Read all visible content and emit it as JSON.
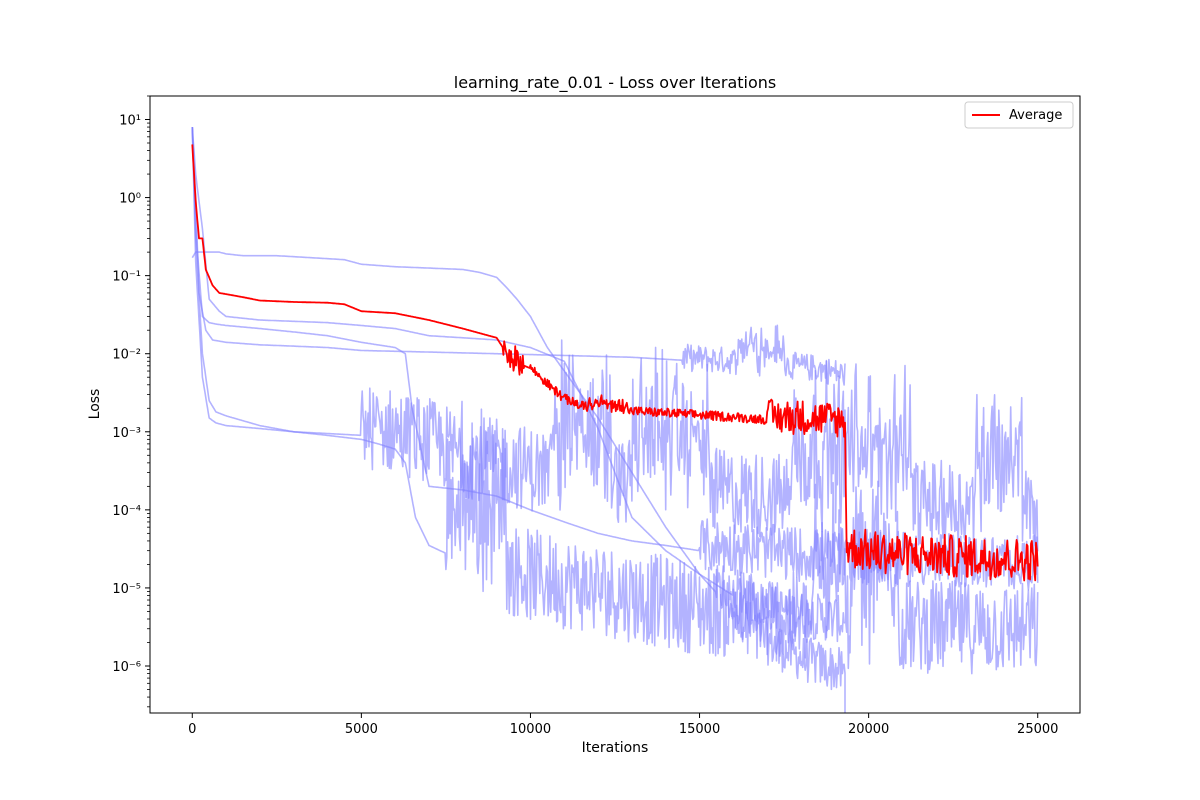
{
  "chart_data": {
    "type": "line",
    "title": "learning_rate_0.01 - Loss over Iterations",
    "xlabel": "Iterations",
    "ylabel": "Loss",
    "xlim": [
      -1250,
      26250
    ],
    "ylim": [
      2.5e-07,
      20
    ],
    "yscale": "log",
    "grid": false,
    "legend_position": "top-right",
    "x_ticks": [
      0,
      5000,
      10000,
      15000,
      20000,
      25000
    ],
    "x_tick_labels": [
      "0",
      "5000",
      "10000",
      "15000",
      "20000",
      "25000"
    ],
    "y_ticks": [
      1e-06,
      1e-05,
      0.0001,
      0.001,
      0.01,
      0.1,
      1,
      10
    ],
    "y_tick_labels": [
      "10⁻⁶",
      "10⁻⁵",
      "10⁻⁴",
      "10⁻³",
      "10⁻²",
      "10⁻¹",
      "10⁰",
      "10¹"
    ],
    "colors": {
      "average": "#ff0000",
      "runs": "#8080ff"
    },
    "run_opacity": 0.6,
    "series": [
      {
        "role": "run",
        "x": [
          0,
          100,
          300,
          500,
          800,
          1000,
          1500,
          2500,
          3500,
          4500,
          5000,
          6000,
          7000,
          8000,
          8500,
          9000,
          9300,
          9600,
          10000,
          10500,
          11000,
          12000,
          13000,
          14000,
          15000,
          16000,
          17000,
          18000,
          19000,
          19300
        ],
        "y": [
          0.17,
          0.2,
          0.2,
          0.2,
          0.2,
          0.19,
          0.18,
          0.18,
          0.17,
          0.16,
          0.14,
          0.13,
          0.125,
          0.12,
          0.11,
          0.095,
          0.07,
          0.05,
          0.03,
          0.012,
          0.006,
          0.0015,
          0.0003,
          6e-05,
          1.5e-05,
          5e-06,
          1.8e-06,
          1.1e-06,
          8e-07,
          7e-07
        ],
        "noise": [
          [
            15500,
            19300,
            0.6
          ]
        ],
        "end_drop": true
      },
      {
        "role": "run",
        "x": [
          0,
          100,
          300,
          500,
          800,
          1000,
          2000,
          3000,
          4000,
          5000,
          6000,
          7000,
          8000,
          9000,
          10000,
          11000,
          12000,
          13000,
          14000,
          15000,
          16000,
          17000,
          18000,
          19000,
          19300
        ],
        "y": [
          8,
          2,
          0.4,
          0.05,
          0.035,
          0.03,
          0.027,
          0.026,
          0.025,
          0.023,
          0.021,
          0.017,
          0.016,
          0.015,
          0.012,
          0.008,
          0.0011,
          8e-05,
          3e-05,
          1.5e-05,
          8e-06,
          5e-06,
          4e-06,
          3.5e-06,
          3.5e-06
        ],
        "noise": [
          [
            16000,
            19300,
            0.6
          ]
        ]
      },
      {
        "role": "run",
        "x": [
          0,
          100,
          200,
          400,
          600,
          1000,
          2000,
          3000,
          4000,
          5000,
          7000,
          9000,
          11000,
          13000,
          15000,
          17000,
          18500,
          19300
        ],
        "y": [
          8,
          1,
          0.06,
          0.02,
          0.015,
          0.014,
          0.013,
          0.0125,
          0.012,
          0.011,
          0.0105,
          0.01,
          0.0095,
          0.009,
          0.008,
          0.007,
          0.006,
          0.005
        ],
        "noise": [
          [
            14500,
            19300,
            0.35
          ]
        ]
      },
      {
        "role": "run",
        "x": [
          0,
          100,
          300,
          500,
          700,
          1000,
          2000,
          3000,
          4000,
          5000,
          5500,
          6000,
          6300,
          6600,
          7000,
          8000,
          9000,
          10000,
          11000,
          12000,
          13000,
          14000,
          15000,
          16000,
          17000,
          18000,
          19000,
          20000,
          21000,
          22000,
          23000,
          24000,
          25000
        ],
        "y": [
          8,
          0.3,
          0.01,
          0.0025,
          0.0018,
          0.0016,
          0.0012,
          0.001,
          0.0009,
          0.0008,
          0.0007,
          0.0006,
          0.0004,
          8e-05,
          3.5e-05,
          2.2e-05,
          1.5e-05,
          1.1e-05,
          9e-06,
          7.5e-06,
          6e-06,
          5e-06,
          4.2e-06,
          3.6e-06,
          3.2e-06,
          3e-06,
          2.8e-06,
          2.6e-06,
          2.5e-06,
          2.4e-06,
          2.4e-06,
          2.3e-06,
          2.3e-06
        ],
        "noise": [
          [
            7500,
            25000,
            1.2
          ]
        ]
      },
      {
        "role": "run",
        "x": [
          0,
          100,
          300,
          500,
          700,
          1000,
          2000,
          3000,
          4000,
          5000,
          6000,
          7000,
          8000,
          9000,
          10000,
          11000,
          12000,
          13000,
          14000,
          15000,
          16000,
          17000,
          18000,
          19000,
          20000,
          21000,
          22000,
          23000,
          24000,
          25000
        ],
        "y": [
          8,
          0.15,
          0.005,
          0.0015,
          0.0013,
          0.0012,
          0.0011,
          0.001,
          0.00095,
          0.0009,
          0.0008,
          0.0006,
          0.0004,
          0.00032,
          0.00026,
          0.00022,
          0.00019,
          0.00017,
          0.00015,
          0.00014,
          0.00013,
          0.00012,
          0.000115,
          0.00011,
          0.000105,
          0.0001,
          9.5e-05,
          9e-05,
          8.5e-05,
          8e-05
        ],
        "noise": [
          [
            5000,
            25000,
            1.1
          ]
        ]
      },
      {
        "role": "run",
        "x": [
          0,
          100,
          300,
          500,
          700,
          1000,
          2000,
          3000,
          4000,
          5000,
          6000,
          6300,
          6500,
          7000,
          8000,
          9000,
          10000,
          11000,
          12000,
          13000,
          14000,
          15000,
          16000,
          17000,
          18000,
          19000,
          20000,
          21000,
          22000,
          23000,
          24000,
          25000
        ],
        "y": [
          8,
          0.4,
          0.03,
          0.025,
          0.024,
          0.023,
          0.021,
          0.019,
          0.017,
          0.014,
          0.012,
          0.01,
          0.002,
          0.0002,
          0.00018,
          0.00015,
          0.0001,
          7e-05,
          5e-05,
          4e-05,
          3.5e-05,
          3e-05,
          2.8e-05,
          2.5e-05,
          2.3e-05,
          2.2e-05,
          2.1e-05,
          2e-05,
          1.9e-05,
          1.9e-05,
          1.8e-05,
          1.8e-05
        ],
        "noise": [
          [
            15000,
            25000,
            0.7
          ]
        ]
      },
      {
        "role": "average",
        "name": "Average",
        "x": [
          0,
          100,
          200,
          300,
          400,
          600,
          800,
          1000,
          1500,
          2000,
          3000,
          4000,
          4500,
          5000,
          6000,
          7000,
          8000,
          9000,
          9300,
          9500,
          10000,
          10500,
          11000,
          11500,
          12000,
          13000,
          14000,
          15000,
          16000,
          17000,
          18000,
          19000,
          19300,
          19350,
          20000,
          21000,
          22000,
          23000,
          24000,
          25000
        ],
        "y": [
          4.8,
          0.9,
          0.3,
          0.3,
          0.12,
          0.075,
          0.06,
          0.058,
          0.053,
          0.048,
          0.046,
          0.045,
          0.043,
          0.035,
          0.033,
          0.027,
          0.021,
          0.016,
          0.01,
          0.008,
          0.0065,
          0.004,
          0.0026,
          0.0021,
          0.0019,
          0.0018,
          0.0017,
          0.0016,
          0.0015,
          0.0014,
          0.0014,
          0.0013,
          0.0012,
          3e-05,
          2.6e-05,
          2.4e-05,
          2.3e-05,
          2.2e-05,
          2.1e-05,
          2e-05
        ],
        "noise": [
          [
            9200,
            9800,
            0.35
          ],
          [
            10000,
            19300,
            0.12
          ],
          [
            17000,
            19300,
            0.45
          ],
          [
            19350,
            25000,
            0.55
          ]
        ]
      }
    ]
  }
}
